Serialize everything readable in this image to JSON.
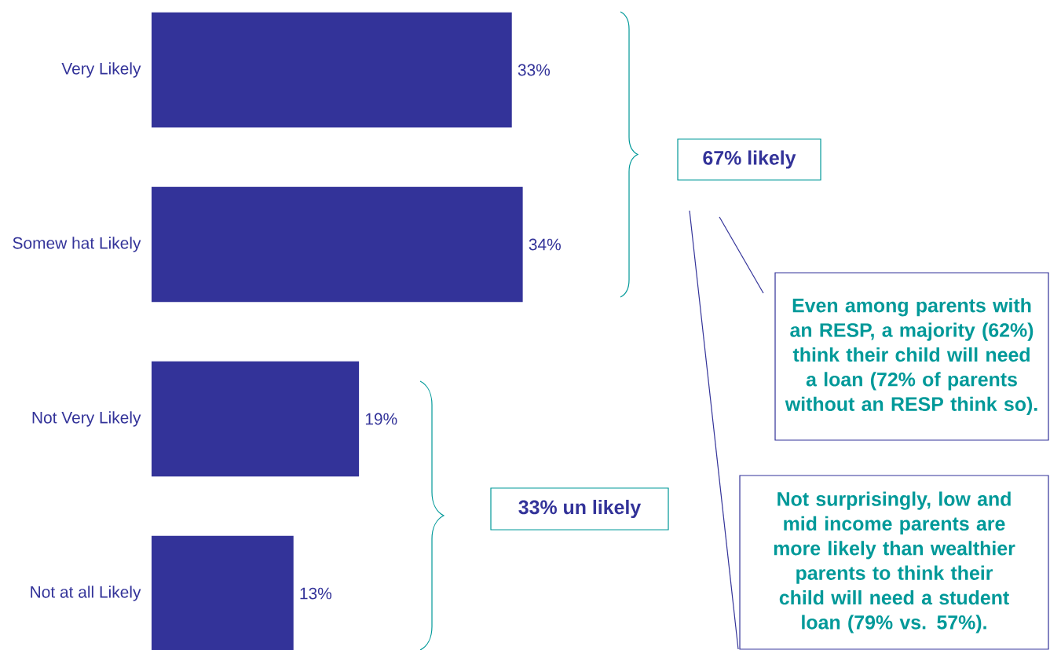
{
  "chart_data": {
    "type": "bar",
    "orientation": "horizontal",
    "categories": [
      "Very Likely",
      "Somew hat Likely",
      "Not Very Likely",
      "Not at all Likely"
    ],
    "values": [
      33,
      34,
      19,
      13
    ],
    "value_labels": [
      "33%",
      "34%",
      "19%",
      "13%"
    ],
    "color": "#333399",
    "annotations": [
      "67% likely",
      "33% un likely",
      "Even among parents with an RESP, a majority (62%) think their child will need a loan (72% of parents without an RESP think so).",
      "Not surprisingly, low and mid income parents are more likely than wealthier parents to think their child will need a student loan (79% vs. 57%)."
    ]
  }
}
